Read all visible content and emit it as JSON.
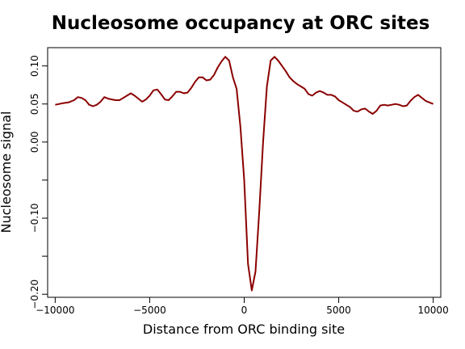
{
  "chart_data": {
    "type": "line",
    "title": "Nucleosome occupancy at ORC sites",
    "xlabel": "Distance from ORC binding site",
    "ylabel": "Nucleosome signal",
    "xlim": [
      -10400,
      10400
    ],
    "ylim": [
      -0.204,
      0.124
    ],
    "x_ticks": [
      -10000,
      -5000,
      0,
      5000,
      10000
    ],
    "x_tick_labels": [
      "−10000",
      "−5000",
      "0",
      "5000",
      "10000"
    ],
    "y_ticks": [
      -0.2,
      -0.15,
      -0.1,
      -0.05,
      0.0,
      0.05,
      0.1
    ],
    "y_tick_labels": [
      "−0.20",
      "",
      "−0.10",
      "",
      "0.00",
      "0.05",
      "0.10"
    ],
    "grid": false,
    "line_color": "#8b0000",
    "series": [
      {
        "x": [
          -10000,
          -9600,
          -9300,
          -9000,
          -8800,
          -8600,
          -8400,
          -8200,
          -8000,
          -7800,
          -7600,
          -7400,
          -7200,
          -7000,
          -6800,
          -6600,
          -6400,
          -6200,
          -6000,
          -5800,
          -5600,
          -5400,
          -5200,
          -5000,
          -4800,
          -4600,
          -4400,
          -4200,
          -4000,
          -3800,
          -3600,
          -3400,
          -3200,
          -3000,
          -2800,
          -2600,
          -2400,
          -2200,
          -2000,
          -1800,
          -1600,
          -1400,
          -1200,
          -1000,
          -800,
          -600,
          -400,
          -200,
          0,
          200,
          400,
          600,
          800,
          1000,
          1200,
          1400,
          1600,
          1800,
          2000,
          2200,
          2400,
          2600,
          2800,
          3000,
          3200,
          3400,
          3600,
          3800,
          4000,
          4200,
          4400,
          4600,
          4800,
          5000,
          5200,
          5400,
          5600,
          5800,
          6000,
          6200,
          6400,
          6600,
          6800,
          7000,
          7200,
          7400,
          7600,
          7800,
          8000,
          8200,
          8400,
          8600,
          8800,
          9000,
          9200,
          9400,
          9600,
          9800,
          10000
        ],
        "values": [
          0.049,
          0.051,
          0.052,
          0.055,
          0.059,
          0.058,
          0.055,
          0.049,
          0.047,
          0.049,
          0.053,
          0.059,
          0.057,
          0.056,
          0.055,
          0.055,
          0.058,
          0.061,
          0.064,
          0.061,
          0.057,
          0.053,
          0.056,
          0.061,
          0.068,
          0.069,
          0.063,
          0.056,
          0.055,
          0.06,
          0.066,
          0.066,
          0.064,
          0.065,
          0.071,
          0.079,
          0.085,
          0.085,
          0.081,
          0.082,
          0.088,
          0.098,
          0.106,
          0.112,
          0.107,
          0.085,
          0.07,
          0.02,
          -0.05,
          -0.16,
          -0.195,
          -0.17,
          -0.09,
          0.0,
          0.073,
          0.107,
          0.112,
          0.107,
          0.1,
          0.093,
          0.085,
          0.08,
          0.076,
          0.073,
          0.07,
          0.063,
          0.061,
          0.065,
          0.067,
          0.065,
          0.062,
          0.062,
          0.06,
          0.055,
          0.052,
          0.049,
          0.046,
          0.041,
          0.04,
          0.043,
          0.044,
          0.04,
          0.037,
          0.041,
          0.048,
          0.049,
          0.048,
          0.049,
          0.05,
          0.049,
          0.047,
          0.048,
          0.054,
          0.059,
          0.062,
          0.058,
          0.054,
          0.052,
          0.05
        ]
      }
    ]
  }
}
